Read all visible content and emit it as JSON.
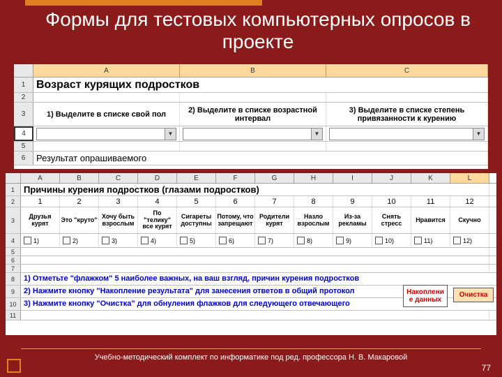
{
  "slide": {
    "title": "Формы для тестовых компьютерных опросов в проекте",
    "footer": "Учебно-методический комплект по информатике под ред. профессора Н. В. Макаровой",
    "pagenum": "77"
  },
  "colors": {
    "background": "#8b1a1a",
    "accent": "#e08020",
    "col_sel": "#ffd89e"
  },
  "sheet1": {
    "columns": [
      "A",
      "B",
      "C"
    ],
    "rows": [
      "1",
      "2",
      "3",
      "4",
      "5",
      "6"
    ],
    "title": "Возраст курящих подростков",
    "q1": "1) Выделите в списке свой пол",
    "q2": "2) Выделите в списке возрастной интервал",
    "q3": "3) Выделите в списке степень привязанности к курению",
    "result": "Результат опрашиваемого"
  },
  "sheet2": {
    "columns": [
      "A",
      "B",
      "C",
      "D",
      "E",
      "F",
      "G",
      "H",
      "I",
      "J",
      "K",
      "L"
    ],
    "rows": [
      "1",
      "2",
      "3",
      "4",
      "5",
      "6",
      "7",
      "8",
      "9",
      "10",
      "11"
    ],
    "title": "Причины курения подростков (глазами подростков)",
    "numbers": [
      "1",
      "2",
      "3",
      "4",
      "5",
      "6",
      "7",
      "8",
      "9",
      "10",
      "11",
      "12"
    ],
    "reasons": [
      "Друзья курят",
      "Это \"круто\"",
      "Хочу быть взрослым",
      "По \"телику\" все курят",
      "Сигареты доступны",
      "Потому, что запрещают",
      "Родители курят",
      "Назло взрослым",
      "Из-за рекламы",
      "Снять стресс",
      "Нравится",
      "Скучно"
    ],
    "cb_labels": [
      "1)",
      "2)",
      "3)",
      "4)",
      "5)",
      "6)",
      "7)",
      "8)",
      "9)",
      "10)",
      "11)",
      "12)"
    ],
    "instr1": "1) Отметьте \"флажком\" 5 наиболее важных, на ваш взгляд, причин курения подростков",
    "instr2": "2) Нажмите кнопку \"Накопление результата\" для занесения ответов в общий протокол",
    "instr3": "3) Нажмите кнопку \"Очистка\" для обнуления флажков для следующего отвечающего",
    "btn_accum": "Накоплени е данных",
    "btn_clear": "Очистка"
  }
}
